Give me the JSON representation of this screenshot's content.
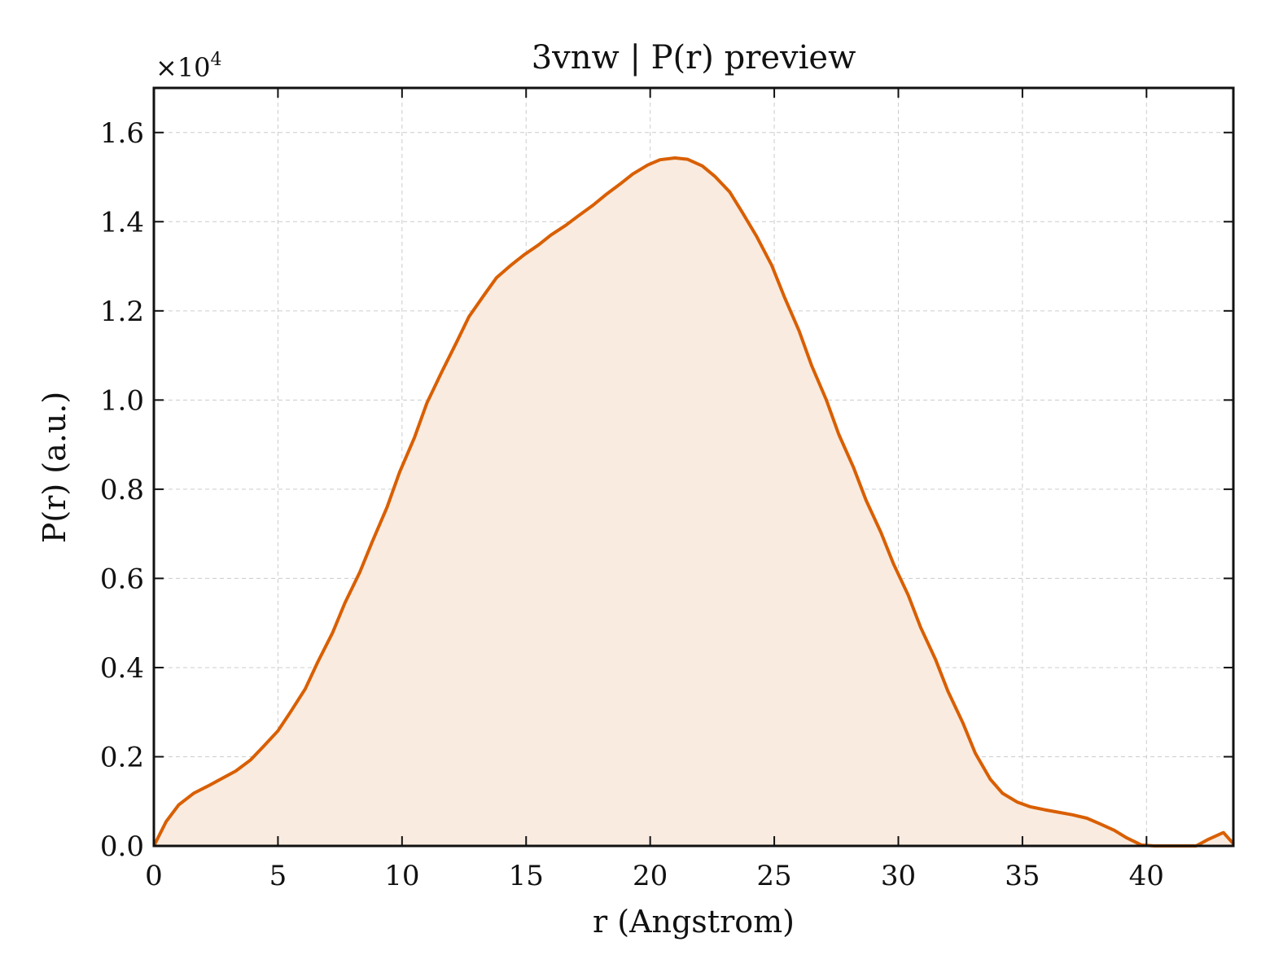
{
  "chart_data": {
    "type": "line",
    "title": "3vnw | P(r) preview",
    "xlabel": "r (Angstrom)",
    "ylabel": "P(r) (a.u.)",
    "y_scale_label": "×10",
    "y_scale_exponent": "4",
    "xlim": [
      0,
      43.5
    ],
    "ylim": [
      0,
      1.7
    ],
    "x_ticks": [
      0,
      5,
      10,
      15,
      20,
      25,
      30,
      35,
      40
    ],
    "x_tick_labels": [
      "0",
      "5",
      "10",
      "15",
      "20",
      "25",
      "30",
      "35",
      "40"
    ],
    "y_ticks": [
      0.0,
      0.2,
      0.4,
      0.6,
      0.8,
      1.0,
      1.2,
      1.4,
      1.6
    ],
    "y_tick_labels": [
      "0.0",
      "0.2",
      "0.4",
      "0.6",
      "0.8",
      "1.0",
      "1.2",
      "1.4",
      "1.6"
    ],
    "grid": true,
    "line_color": "#d95f02",
    "fill_color": "#f9ebe0",
    "series": [
      {
        "x": [
          0.0,
          0.5,
          1.0,
          1.6,
          2.2,
          2.7,
          3.3,
          3.9,
          4.4,
          5.0,
          5.5,
          6.1,
          6.6,
          7.2,
          7.7,
          8.3,
          8.8,
          9.4,
          9.9,
          10.5,
          11.0,
          11.6,
          12.2,
          12.7,
          13.3,
          13.8,
          14.4,
          14.9,
          15.5,
          16.0,
          16.6,
          17.1,
          17.7,
          18.2,
          18.8,
          19.3,
          19.9,
          20.4,
          21.0,
          21.5,
          22.1,
          22.6,
          23.2,
          23.7,
          24.3,
          24.9,
          25.4,
          26.0,
          26.5,
          27.1,
          27.6,
          28.2,
          28.7,
          29.3,
          29.8,
          30.4,
          30.9,
          31.5,
          32.0,
          32.6,
          33.1,
          33.7,
          34.2,
          34.8,
          35.3,
          35.9,
          36.4,
          37.0,
          37.6,
          38.1,
          38.7,
          39.2,
          39.8,
          40.3,
          40.9,
          41.4,
          42.0,
          42.5,
          43.1,
          43.5
        ],
        "y": [
          0.0,
          0.055,
          0.092,
          0.118,
          0.135,
          0.15,
          0.168,
          0.193,
          0.222,
          0.258,
          0.3,
          0.352,
          0.412,
          0.478,
          0.545,
          0.614,
          0.682,
          0.76,
          0.838,
          0.916,
          0.993,
          1.063,
          1.13,
          1.187,
          1.235,
          1.274,
          1.303,
          1.325,
          1.348,
          1.37,
          1.392,
          1.413,
          1.437,
          1.46,
          1.485,
          1.507,
          1.527,
          1.539,
          1.543,
          1.54,
          1.525,
          1.502,
          1.467,
          1.422,
          1.366,
          1.302,
          1.232,
          1.155,
          1.078,
          1.0,
          0.923,
          0.848,
          0.775,
          0.703,
          0.633,
          0.562,
          0.49,
          0.418,
          0.347,
          0.276,
          0.208,
          0.15,
          0.118,
          0.098,
          0.088,
          0.081,
          0.076,
          0.07,
          0.062,
          0.05,
          0.035,
          0.018,
          0.002,
          0.0,
          0.0,
          0.0,
          0.0,
          0.015,
          0.03,
          0.005
        ]
      }
    ]
  }
}
